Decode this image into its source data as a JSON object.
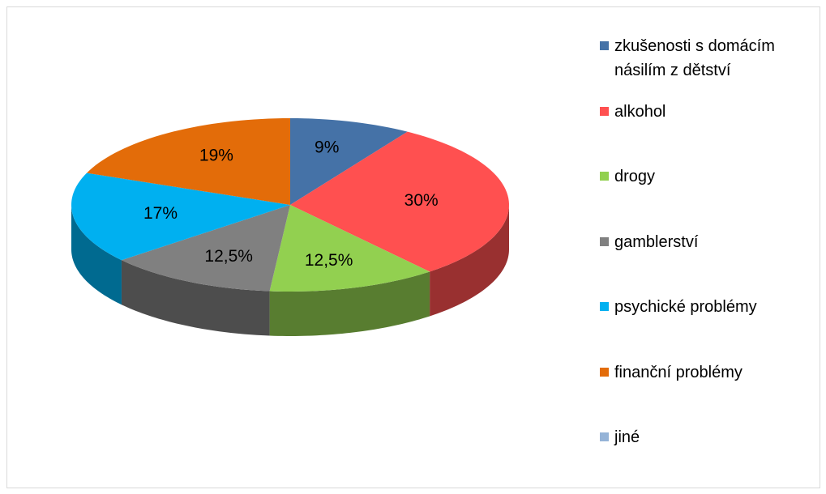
{
  "chart_data": {
    "type": "pie",
    "categories": [
      "zkušenosti s domácím násilím z dětství",
      "alkohol",
      "drogy",
      "gamblerství",
      "psychické problémy",
      "finanční problémy",
      "jiné"
    ],
    "values": [
      9,
      30,
      12.5,
      12.5,
      17,
      19,
      0
    ],
    "value_labels": [
      "9%",
      "30%",
      "12,5%",
      "12,5%",
      "17%",
      "19%",
      null
    ],
    "colors": [
      "#4572a7",
      "#ff5050",
      "#92d050",
      "#808080",
      "#00b0f0",
      "#e36c09",
      "#95b3d7"
    ],
    "legend": "right"
  }
}
